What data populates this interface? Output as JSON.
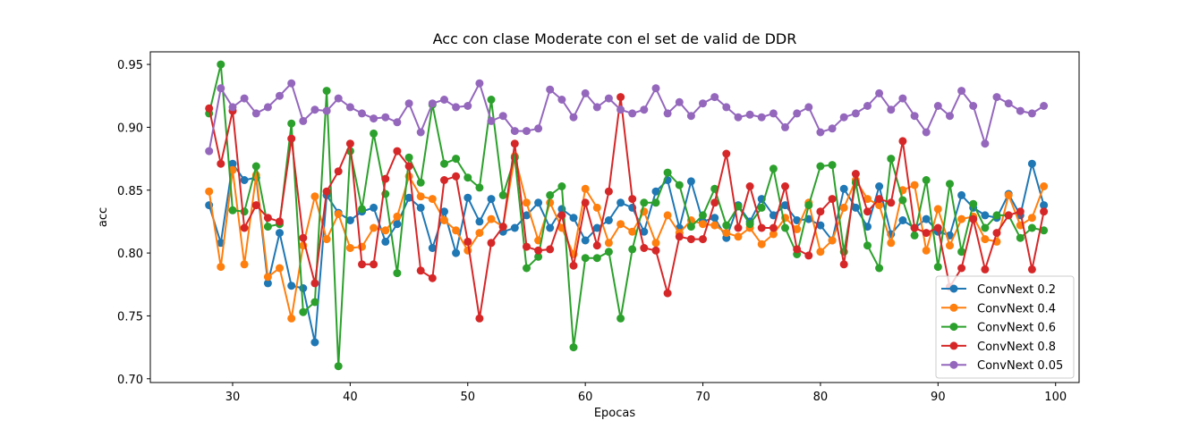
{
  "chart_data": {
    "type": "line",
    "title": "Acc con clase Moderate con el set de valid de DDR",
    "xlabel": "Epocas",
    "ylabel": "acc",
    "xlim": [
      23,
      102
    ],
    "ylim": [
      0.697,
      0.96
    ],
    "xticks": [
      30,
      40,
      50,
      60,
      70,
      80,
      90,
      100
    ],
    "yticks": [
      0.7,
      0.75,
      0.8,
      0.85,
      0.9,
      0.95
    ],
    "ytick_labels": [
      "0.70",
      "0.75",
      "0.80",
      "0.85",
      "0.90",
      "0.95"
    ],
    "grid": false,
    "legend_position": "lower right",
    "x": [
      28,
      29,
      30,
      31,
      32,
      33,
      34,
      35,
      36,
      37,
      38,
      39,
      40,
      41,
      42,
      43,
      44,
      45,
      46,
      47,
      48,
      49,
      50,
      51,
      52,
      53,
      54,
      55,
      56,
      57,
      58,
      59,
      60,
      61,
      62,
      63,
      64,
      65,
      66,
      67,
      68,
      69,
      70,
      71,
      72,
      73,
      74,
      75,
      76,
      77,
      78,
      79,
      80,
      81,
      82,
      83,
      84,
      85,
      86,
      87,
      88,
      89,
      90,
      91,
      92,
      93,
      94,
      95,
      96,
      97,
      98,
      99
    ],
    "series": [
      {
        "name": "ConvNext 0.2",
        "color": "#1f77b4",
        "values": [
          0.838,
          0.808,
          0.871,
          0.858,
          0.86,
          0.776,
          0.816,
          0.774,
          0.772,
          0.729,
          0.846,
          0.832,
          0.826,
          0.833,
          0.836,
          0.809,
          0.823,
          0.844,
          0.836,
          0.804,
          0.833,
          0.8,
          0.844,
          0.825,
          0.843,
          0.817,
          0.82,
          0.83,
          0.84,
          0.82,
          0.835,
          0.828,
          0.81,
          0.82,
          0.826,
          0.84,
          0.836,
          0.817,
          0.849,
          0.858,
          0.82,
          0.857,
          0.825,
          0.828,
          0.812,
          0.838,
          0.825,
          0.843,
          0.83,
          0.838,
          0.826,
          0.827,
          0.822,
          0.81,
          0.851,
          0.836,
          0.821,
          0.853,
          0.815,
          0.826,
          0.82,
          0.827,
          0.817,
          0.814,
          0.846,
          0.836,
          0.83,
          0.828,
          0.847,
          0.83,
          0.871,
          0.838
        ]
      },
      {
        "name": "ConvNext 0.4",
        "color": "#ff7f0e",
        "values": [
          0.849,
          0.789,
          0.866,
          0.791,
          0.862,
          0.781,
          0.788,
          0.748,
          0.806,
          0.845,
          0.811,
          0.831,
          0.804,
          0.805,
          0.82,
          0.818,
          0.829,
          0.861,
          0.845,
          0.843,
          0.826,
          0.818,
          0.802,
          0.816,
          0.827,
          0.821,
          0.877,
          0.84,
          0.81,
          0.84,
          0.82,
          0.799,
          0.851,
          0.836,
          0.808,
          0.823,
          0.817,
          0.833,
          0.808,
          0.83,
          0.816,
          0.826,
          0.823,
          0.822,
          0.816,
          0.813,
          0.82,
          0.807,
          0.815,
          0.828,
          0.819,
          0.84,
          0.801,
          0.81,
          0.836,
          0.858,
          0.843,
          0.838,
          0.808,
          0.85,
          0.854,
          0.802,
          0.835,
          0.806,
          0.827,
          0.829,
          0.811,
          0.809,
          0.846,
          0.822,
          0.828,
          0.853
        ]
      },
      {
        "name": "ConvNext 0.6",
        "color": "#2ca02c",
        "values": [
          0.911,
          0.95,
          0.834,
          0.833,
          0.869,
          0.821,
          0.823,
          0.903,
          0.753,
          0.761,
          0.929,
          0.71,
          0.881,
          0.835,
          0.895,
          0.847,
          0.784,
          0.876,
          0.856,
          0.918,
          0.871,
          0.875,
          0.86,
          0.852,
          0.922,
          0.846,
          0.876,
          0.788,
          0.797,
          0.846,
          0.853,
          0.725,
          0.796,
          0.796,
          0.801,
          0.748,
          0.803,
          0.84,
          0.84,
          0.864,
          0.854,
          0.821,
          0.83,
          0.851,
          0.822,
          0.837,
          0.823,
          0.836,
          0.867,
          0.82,
          0.799,
          0.838,
          0.869,
          0.87,
          0.801,
          0.856,
          0.806,
          0.788,
          0.875,
          0.842,
          0.814,
          0.858,
          0.789,
          0.855,
          0.801,
          0.839,
          0.82,
          0.83,
          0.83,
          0.812,
          0.82,
          0.818
        ]
      },
      {
        "name": "ConvNext 0.8",
        "color": "#d62728",
        "values": [
          0.915,
          0.871,
          0.913,
          0.82,
          0.838,
          0.828,
          0.825,
          0.891,
          0.812,
          0.776,
          0.849,
          0.865,
          0.887,
          0.791,
          0.791,
          0.859,
          0.881,
          0.869,
          0.786,
          0.78,
          0.858,
          0.861,
          0.809,
          0.748,
          0.808,
          0.821,
          0.887,
          0.805,
          0.802,
          0.803,
          0.83,
          0.79,
          0.84,
          0.806,
          0.849,
          0.924,
          0.843,
          0.804,
          0.802,
          0.768,
          0.813,
          0.811,
          0.811,
          0.84,
          0.879,
          0.82,
          0.853,
          0.82,
          0.82,
          0.853,
          0.803,
          0.798,
          0.833,
          0.843,
          0.791,
          0.863,
          0.833,
          0.843,
          0.84,
          0.889,
          0.82,
          0.816,
          0.82,
          0.773,
          0.788,
          0.827,
          0.787,
          0.816,
          0.83,
          0.833,
          0.787,
          0.833
        ]
      },
      {
        "name": "ConvNext 0.05",
        "color": "#9467bd",
        "values": [
          0.881,
          0.931,
          0.916,
          0.923,
          0.911,
          0.916,
          0.925,
          0.935,
          0.905,
          0.914,
          0.913,
          0.923,
          0.916,
          0.911,
          0.907,
          0.908,
          0.904,
          0.919,
          0.896,
          0.919,
          0.922,
          0.916,
          0.917,
          0.935,
          0.905,
          0.909,
          0.897,
          0.897,
          0.899,
          0.93,
          0.922,
          0.908,
          0.927,
          0.916,
          0.923,
          0.914,
          0.911,
          0.914,
          0.931,
          0.911,
          0.92,
          0.909,
          0.919,
          0.924,
          0.916,
          0.908,
          0.91,
          0.908,
          0.911,
          0.9,
          0.911,
          0.916,
          0.896,
          0.899,
          0.908,
          0.911,
          0.917,
          0.927,
          0.914,
          0.923,
          0.909,
          0.896,
          0.917,
          0.909,
          0.929,
          0.917,
          0.887,
          0.924,
          0.919,
          0.913,
          0.911,
          0.917
        ]
      }
    ]
  }
}
